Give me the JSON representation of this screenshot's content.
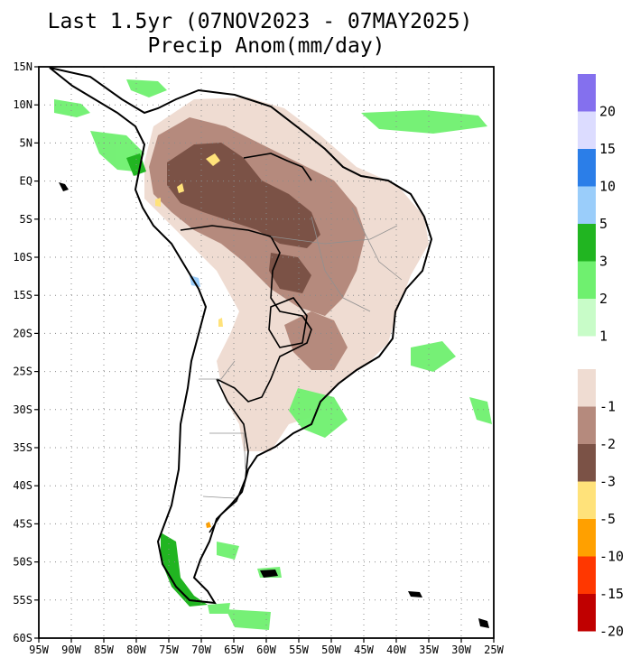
{
  "title": {
    "line1": "Last 1.5yr (07NOV2023 - 07MAY2025)",
    "line2": "Precip Anom(mm/day)"
  },
  "axes": {
    "y_labels": [
      "15N",
      "10N",
      "5N",
      "EQ",
      "5S",
      "10S",
      "15S",
      "20S",
      "25S",
      "30S",
      "35S",
      "40S",
      "45S",
      "50S",
      "55S",
      "60S"
    ],
    "x_labels": [
      "95W",
      "90W",
      "85W",
      "80W",
      "75W",
      "70W",
      "65W",
      "60W",
      "55W",
      "50W",
      "45W",
      "40W",
      "35W",
      "30W",
      "25W"
    ],
    "lat_range": [
      15,
      -60
    ],
    "lon_range": [
      -95,
      -25
    ],
    "grid": "dotted"
  },
  "legend_wet": {
    "colors": [
      "#8470ee",
      "#dcdcff",
      "#2b7ee8",
      "#9acdfa",
      "#21b521",
      "#6ff06f",
      "#c8fcc8"
    ],
    "labels": [
      "20",
      "15",
      "10",
      "5",
      "3",
      "2",
      "1"
    ]
  },
  "legend_dry": {
    "colors": [
      "#efdcd2",
      "#b58a7d",
      "#7b5246",
      "#ffe27a",
      "#ffa000",
      "#ff3700",
      "#c00000"
    ],
    "labels": [
      "-1",
      "-2",
      "-3",
      "-5",
      "-10",
      "-15",
      "-20"
    ]
  }
}
